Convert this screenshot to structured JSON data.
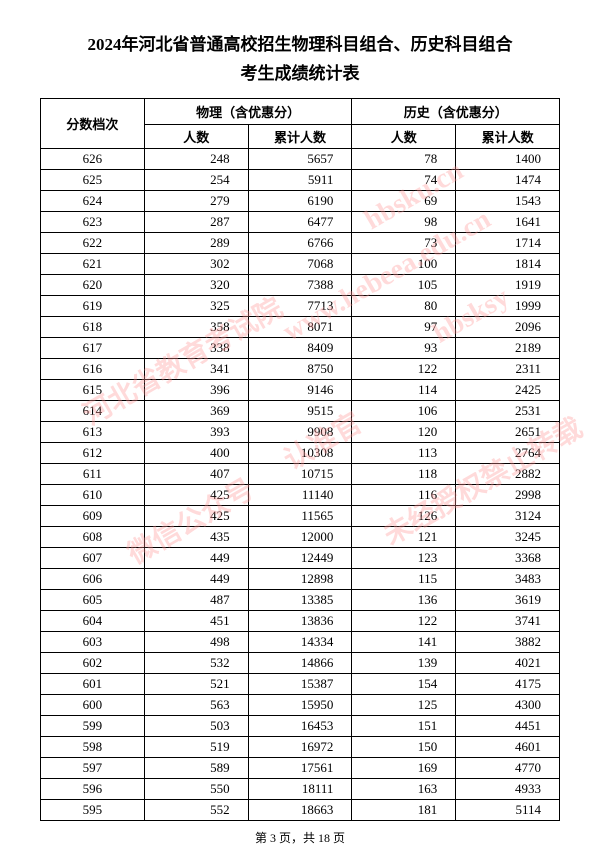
{
  "title": "2024年河北省普通高校招生物理科目组合、历史科目组合",
  "subtitle": "考生成绩统计表",
  "headers": {
    "score": "分数档次",
    "physics": "物理（含优惠分）",
    "history": "历史（含优惠分）",
    "count": "人数",
    "cumulative": "累计人数"
  },
  "rows": [
    {
      "score": 626,
      "pc": 248,
      "pcc": 5657,
      "hc": 78,
      "hcc": 1400
    },
    {
      "score": 625,
      "pc": 254,
      "pcc": 5911,
      "hc": 74,
      "hcc": 1474
    },
    {
      "score": 624,
      "pc": 279,
      "pcc": 6190,
      "hc": 69,
      "hcc": 1543
    },
    {
      "score": 623,
      "pc": 287,
      "pcc": 6477,
      "hc": 98,
      "hcc": 1641
    },
    {
      "score": 622,
      "pc": 289,
      "pcc": 6766,
      "hc": 73,
      "hcc": 1714
    },
    {
      "score": 621,
      "pc": 302,
      "pcc": 7068,
      "hc": 100,
      "hcc": 1814
    },
    {
      "score": 620,
      "pc": 320,
      "pcc": 7388,
      "hc": 105,
      "hcc": 1919
    },
    {
      "score": 619,
      "pc": 325,
      "pcc": 7713,
      "hc": 80,
      "hcc": 1999
    },
    {
      "score": 618,
      "pc": 358,
      "pcc": 8071,
      "hc": 97,
      "hcc": 2096
    },
    {
      "score": 617,
      "pc": 338,
      "pcc": 8409,
      "hc": 93,
      "hcc": 2189
    },
    {
      "score": 616,
      "pc": 341,
      "pcc": 8750,
      "hc": 122,
      "hcc": 2311
    },
    {
      "score": 615,
      "pc": 396,
      "pcc": 9146,
      "hc": 114,
      "hcc": 2425
    },
    {
      "score": 614,
      "pc": 369,
      "pcc": 9515,
      "hc": 106,
      "hcc": 2531
    },
    {
      "score": 613,
      "pc": 393,
      "pcc": 9908,
      "hc": 120,
      "hcc": 2651
    },
    {
      "score": 612,
      "pc": 400,
      "pcc": 10308,
      "hc": 113,
      "hcc": 2764
    },
    {
      "score": 611,
      "pc": 407,
      "pcc": 10715,
      "hc": 118,
      "hcc": 2882
    },
    {
      "score": 610,
      "pc": 425,
      "pcc": 11140,
      "hc": 116,
      "hcc": 2998
    },
    {
      "score": 609,
      "pc": 425,
      "pcc": 11565,
      "hc": 126,
      "hcc": 3124
    },
    {
      "score": 608,
      "pc": 435,
      "pcc": 12000,
      "hc": 121,
      "hcc": 3245
    },
    {
      "score": 607,
      "pc": 449,
      "pcc": 12449,
      "hc": 123,
      "hcc": 3368
    },
    {
      "score": 606,
      "pc": 449,
      "pcc": 12898,
      "hc": 115,
      "hcc": 3483
    },
    {
      "score": 605,
      "pc": 487,
      "pcc": 13385,
      "hc": 136,
      "hcc": 3619
    },
    {
      "score": 604,
      "pc": 451,
      "pcc": 13836,
      "hc": 122,
      "hcc": 3741
    },
    {
      "score": 603,
      "pc": 498,
      "pcc": 14334,
      "hc": 141,
      "hcc": 3882
    },
    {
      "score": 602,
      "pc": 532,
      "pcc": 14866,
      "hc": 139,
      "hcc": 4021
    },
    {
      "score": 601,
      "pc": 521,
      "pcc": 15387,
      "hc": 154,
      "hcc": 4175
    },
    {
      "score": 600,
      "pc": 563,
      "pcc": 15950,
      "hc": 125,
      "hcc": 4300
    },
    {
      "score": 599,
      "pc": 503,
      "pcc": 16453,
      "hc": 151,
      "hcc": 4451
    },
    {
      "score": 598,
      "pc": 519,
      "pcc": 16972,
      "hc": 150,
      "hcc": 4601
    },
    {
      "score": 597,
      "pc": 589,
      "pcc": 17561,
      "hc": 169,
      "hcc": 4770
    },
    {
      "score": 596,
      "pc": 550,
      "pcc": 18111,
      "hc": 163,
      "hcc": 4933
    },
    {
      "score": 595,
      "pc": 552,
      "pcc": 18663,
      "hc": 181,
      "hcc": 5114
    }
  ],
  "footer": "第 3 页，共 18 页",
  "watermarks": {
    "wm1": "河北省教育考试院",
    "wm2": "www.hebeea.edu.cn",
    "wm3": "认准官",
    "wm4": "微信公众号",
    "wm5": "hbsksy",
    "wm6": "未经授权禁止转载",
    "wm7": "hbsku.cn"
  },
  "style": {
    "background_color": "#ffffff",
    "text_color": "#000000",
    "border_color": "#000000",
    "watermark_color": "rgba(255, 150, 150, 0.35)",
    "title_fontsize": 17,
    "table_fontsize": 13,
    "footer_fontsize": 12
  }
}
